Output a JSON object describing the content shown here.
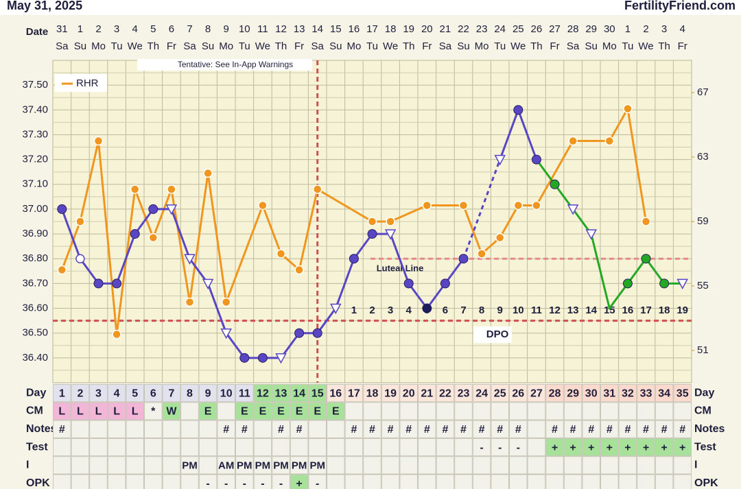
{
  "chart_data": {
    "type": "line",
    "title": "May 31, 2025",
    "source": "FertilityFriend.com",
    "date_label": "Date",
    "annotation": "Tentative: See In-App Warnings",
    "categories": [
      "31",
      "1",
      "2",
      "3",
      "4",
      "5",
      "6",
      "7",
      "8",
      "9",
      "10",
      "11",
      "12",
      "13",
      "14",
      "15",
      "16",
      "17",
      "18",
      "19",
      "20",
      "21",
      "22",
      "23",
      "24",
      "25",
      "26",
      "27",
      "28",
      "29",
      "30",
      "1",
      "2",
      "3",
      "4"
    ],
    "weekdays": [
      "Sa",
      "Su",
      "Mo",
      "Tu",
      "We",
      "Th",
      "Fr",
      "Sa",
      "Su",
      "Mo",
      "Tu",
      "We",
      "Th",
      "Fr",
      "Sa",
      "Su",
      "Mo",
      "Tu",
      "We",
      "Th",
      "Fr",
      "Sa",
      "Su",
      "Mo",
      "Tu",
      "We",
      "Th",
      "Fr",
      "Sa",
      "Su",
      "Mo",
      "Tu",
      "We",
      "Th",
      "Fr"
    ],
    "ylim": [
      36.3,
      37.6
    ],
    "yticks": [
      {
        "value": 36.4,
        "label": "36.40"
      },
      {
        "value": 36.5,
        "label": "36.50"
      },
      {
        "value": 36.6,
        "label": "36.60"
      },
      {
        "value": 36.7,
        "label": "36.70"
      },
      {
        "value": 36.8,
        "label": "36.80"
      },
      {
        "value": 36.9,
        "label": "36.90"
      },
      {
        "value": 37.0,
        "label": "37.00"
      },
      {
        "value": 37.1,
        "label": "37.10"
      },
      {
        "value": 37.2,
        "label": "37.20"
      },
      {
        "value": 37.3,
        "label": "37.30"
      },
      {
        "value": 37.4,
        "label": "37.40"
      },
      {
        "value": 37.5,
        "label": "37.50"
      }
    ],
    "minor_yticks": [
      36.35,
      36.45,
      36.55,
      36.65,
      36.75,
      36.85,
      36.95,
      37.05,
      37.15,
      37.25,
      37.35,
      37.45,
      37.55
    ],
    "y2lim": [
      49,
      69
    ],
    "y2ticks": [
      51,
      55,
      59,
      63,
      67
    ],
    "grid": true,
    "legend": "top-left",
    "series": [
      {
        "color": "#5846c4",
        "values": [
          37.0,
          36.8,
          36.7,
          36.7,
          36.9,
          37.0,
          37.0,
          36.8,
          36.7,
          36.5,
          36.4,
          36.4,
          36.4,
          36.5,
          36.5,
          36.6,
          36.8,
          36.9,
          36.9,
          36.7,
          36.6,
          36.7,
          36.8,
          null,
          37.2,
          37.4,
          37.2,
          37.1,
          37.0,
          36.9,
          36.6,
          36.7,
          36.8,
          36.7,
          36.7
        ],
        "markers": [
          "filled",
          "open",
          "filled",
          "filled",
          "filled",
          "filled",
          "triangle",
          "triangle",
          "triangle",
          "triangle",
          "filled",
          "filled",
          "triangle",
          "filled",
          "filled",
          "triangle",
          "filled",
          "filled",
          "triangle",
          "filled",
          "filled",
          "filled",
          "filled",
          null,
          "triangle",
          "filled",
          "filled",
          "filled",
          "triangle",
          "triangle",
          "dot",
          "filled",
          "filled",
          "filled",
          "triangle"
        ],
        "marker_colors": [
          "#5846c4",
          "#5846c4",
          "#5846c4",
          "#5846c4",
          "#5846c4",
          "#5846c4",
          "#5846c4",
          "#5846c4",
          "#5846c4",
          "#5846c4",
          "#5846c4",
          "#5846c4",
          "#5846c4",
          "#5846c4",
          "#5846c4",
          "#5846c4",
          "#5846c4",
          "#5846c4",
          "#5846c4",
          "#5846c4",
          "#1c1c5a",
          "#5846c4",
          "#5846c4",
          null,
          "#5846c4",
          "#5846c4",
          "#5846c4",
          "#22a822",
          "#5846c4",
          "#5846c4",
          "#22a822",
          "#22a822",
          "#22a822",
          "#22a822",
          "#5846c4"
        ],
        "line_colors": [
          "#5846c4",
          "#5846c4",
          "#5846c4",
          "#5846c4",
          "#5846c4",
          "#5846c4",
          "#5846c4",
          "#5846c4",
          "#5846c4",
          "#5846c4",
          "#5846c4",
          "#5846c4",
          "#5846c4",
          "#5846c4",
          "#5846c4",
          "#5846c4",
          "#5846c4",
          "#5846c4",
          "#5846c4",
          "#5846c4",
          "#5846c4",
          "#5846c4",
          "#5846c4",
          null,
          "#5846c4",
          "#5846c4",
          "#5846c4",
          "#22a822",
          "#22a822",
          "#22a822",
          "#22a822",
          "#22a822",
          "#22a822",
          "#22a822",
          "#22a822"
        ],
        "gap_style": "dashed"
      },
      {
        "name": "RHR",
        "color": "#f0961e",
        "axis": "y2",
        "gap_style": "solid",
        "values": [
          56,
          59,
          64,
          52,
          61,
          58,
          61,
          54,
          62,
          54,
          null,
          60,
          57,
          56,
          61,
          null,
          null,
          59,
          59,
          null,
          60,
          null,
          60,
          57,
          58,
          60,
          60,
          null,
          64,
          null,
          64,
          66,
          59,
          null,
          null
        ]
      }
    ],
    "coverline": {
      "value": 36.55,
      "color": "#d05050"
    },
    "luteal_line": {
      "value": 36.8,
      "label": "Luteal Line",
      "color": "#e58a8a"
    },
    "ovulation_date": "14",
    "dpo": {
      "label": "DPO",
      "values": [
        null,
        null,
        null,
        null,
        null,
        null,
        null,
        null,
        null,
        null,
        null,
        null,
        null,
        null,
        null,
        null,
        1,
        2,
        3,
        4,
        5,
        6,
        7,
        8,
        9,
        10,
        11,
        12,
        13,
        14,
        15,
        16,
        17,
        18,
        19
      ]
    },
    "table": {
      "row_labels": [
        "Day",
        "CM",
        "Notes",
        "Test",
        "I",
        "OPK"
      ],
      "day": [
        1,
        2,
        3,
        4,
        5,
        6,
        7,
        8,
        9,
        10,
        11,
        12,
        13,
        14,
        15,
        16,
        17,
        18,
        19,
        20,
        21,
        22,
        23,
        24,
        25,
        26,
        27,
        28,
        29,
        30,
        31,
        32,
        33,
        34,
        35
      ],
      "day_colors": [
        "#e2e2ee",
        "#e2e2ee",
        "#e2e2ee",
        "#e2e2ee",
        "#e2e2ee",
        "#e2e2ee",
        "#e2e2ee",
        "#e2e2ee",
        "#e2e2ee",
        "#e2e2ee",
        "#e2e2ee",
        "#a8e29a",
        "#a8e29a",
        "#a8e29a",
        "#a8e29a",
        "#fbe6dc",
        "#fbe6dc",
        "#fbe6dc",
        "#fbe6dc",
        "#fbe6dc",
        "#fbe6dc",
        "#fbe6dc",
        "#fbe6dc",
        "#fbe6dc",
        "#fbe6dc",
        "#fbe6dc",
        "#fbe6dc",
        "#fbd9cc",
        "#fbd9cc",
        "#fbd9cc",
        "#fbd9cc",
        "#fbd9cc",
        "#fbd9cc",
        "#fbd9cc",
        "#fbd9cc"
      ],
      "cm": [
        "L",
        "L",
        "L",
        "L",
        "L",
        "*",
        "W",
        null,
        "E",
        null,
        "E",
        "E",
        "E",
        "E",
        "E",
        "E",
        null,
        null,
        null,
        null,
        null,
        null,
        null,
        null,
        null,
        null,
        null,
        null,
        null,
        null,
        null,
        null,
        null,
        null,
        null
      ],
      "cm_colors": {
        "L": "#f2b6d6",
        "W": "#a8e29a",
        "E": "#a8e29a"
      },
      "notes": [
        "#",
        null,
        null,
        null,
        null,
        null,
        null,
        null,
        null,
        "#",
        "#",
        null,
        "#",
        "#",
        null,
        null,
        "#",
        "#",
        "#",
        "#",
        "#",
        "#",
        "#",
        "#",
        "#",
        "#",
        null,
        "#",
        "#",
        "#",
        "#",
        "#",
        "#",
        "#",
        "#"
      ],
      "test": [
        null,
        null,
        null,
        null,
        null,
        null,
        null,
        null,
        null,
        null,
        null,
        null,
        null,
        null,
        null,
        null,
        null,
        null,
        null,
        null,
        null,
        null,
        null,
        "-",
        "-",
        "-",
        null,
        "+",
        "+",
        "+",
        "+",
        "+",
        "+",
        "+",
        "+"
      ],
      "intercourse": [
        null,
        null,
        null,
        null,
        null,
        null,
        null,
        "PM",
        null,
        "AM",
        "PM",
        "PM",
        "PM",
        "PM",
        "PM",
        null,
        null,
        null,
        null,
        null,
        null,
        null,
        null,
        null,
        null,
        null,
        null,
        null,
        null,
        null,
        null,
        null,
        null,
        null,
        null
      ],
      "opk": [
        null,
        null,
        null,
        null,
        null,
        null,
        null,
        null,
        "-",
        "-",
        "-",
        "-",
        "-",
        "+",
        "-",
        null,
        null,
        null,
        null,
        null,
        null,
        null,
        null,
        null,
        null,
        null,
        null,
        null,
        null,
        null,
        null,
        null,
        null,
        null,
        null
      ],
      "positive_color": "#a8e29a"
    }
  }
}
